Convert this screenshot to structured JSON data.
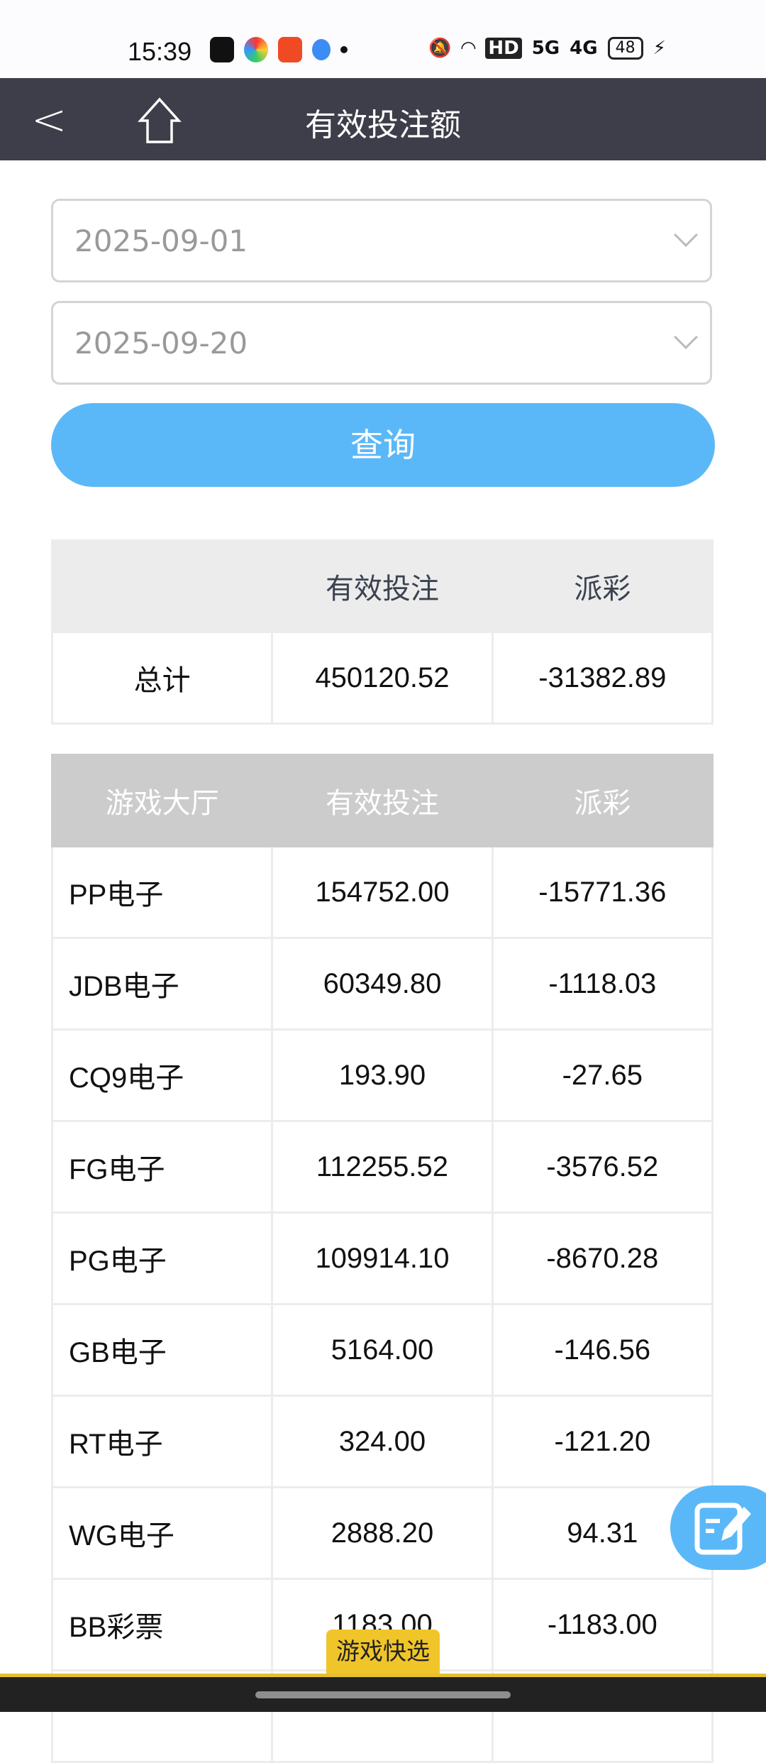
{
  "status_bar": {
    "time": "15:39",
    "battery": "48",
    "network": [
      "5G",
      "4G"
    ],
    "hd": "HD"
  },
  "header": {
    "title": "有效投注额"
  },
  "filters": {
    "start_date": "2025-09-01",
    "end_date": "2025-09-20",
    "query_label": "查询"
  },
  "summary": {
    "headers": [
      "",
      "有效投注",
      "派彩"
    ],
    "row": {
      "label": "总计",
      "bet": "450120.52",
      "payout": "-31382.89"
    }
  },
  "details": {
    "headers": [
      "游戏大厅",
      "有效投注",
      "派彩"
    ],
    "rows": [
      [
        "PP电子",
        "154752.00",
        "-15771.36"
      ],
      [
        "JDB电子",
        "60349.80",
        "-1118.03"
      ],
      [
        "CQ9电子",
        "193.90",
        "-27.65"
      ],
      [
        "FG电子",
        "112255.52",
        "-3576.52"
      ],
      [
        "PG电子",
        "109914.10",
        "-8670.28"
      ],
      [
        "GB电子",
        "5164.00",
        "-146.56"
      ],
      [
        "RT电子",
        "324.00",
        "-121.20"
      ],
      [
        "WG电子",
        "2888.20",
        "94.31"
      ],
      [
        "BB彩票",
        "1183.00",
        "-1183.00"
      ]
    ]
  },
  "quick_select_label": "游戏快选",
  "colors": {
    "accent": "#5bb8f8",
    "header_bg": "#3e3e4a",
    "quick_tab": "#f0c52a"
  }
}
